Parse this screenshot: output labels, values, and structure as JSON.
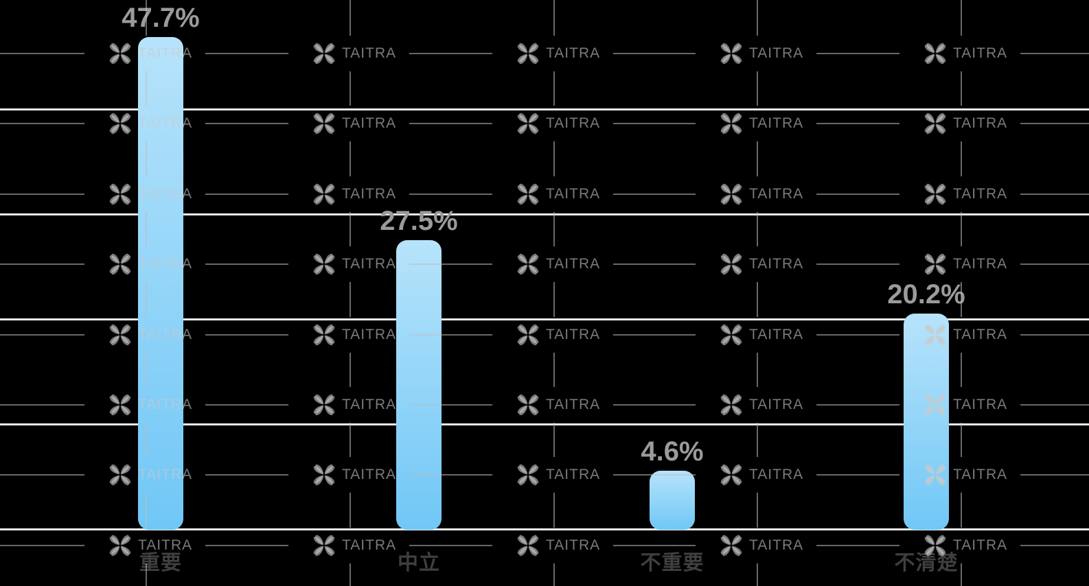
{
  "chart_data": {
    "type": "bar",
    "title": "",
    "categories": [
      "重要",
      "中立",
      "不重要",
      "不清楚"
    ],
    "values": [
      47.7,
      27.5,
      4.6,
      20.2
    ],
    "value_labels": [
      "47.7%",
      "27.5%",
      "4.6%",
      "20.2%"
    ],
    "unit": "%",
    "xlabel": "",
    "ylabel": "",
    "ylim": [
      0,
      50
    ],
    "gridlines_percent": [
      0,
      10,
      20,
      30,
      40
    ],
    "grid": "horizontal",
    "legend_position": "none",
    "bar_corner_style": "rounded"
  },
  "watermark": {
    "text": "TAITRA",
    "logo_icon": "taitra-pinwheel-logo",
    "pattern": "repeated grid of logo + wordmark with crosshair dash lines",
    "rows": 8,
    "columns": 5
  },
  "colors": {
    "background": "#000000",
    "bar_gradient_top": "#b7e3fb",
    "bar_gradient_bottom": "#70c7f6",
    "gridline": "#e9e9e9",
    "value_label": "#9b9b9b",
    "category_label": "#3f3f3f",
    "watermark_glyph": "rgba(201,201,201,0.60)",
    "watermark_line": "rgba(190,190,190,0.55)"
  }
}
